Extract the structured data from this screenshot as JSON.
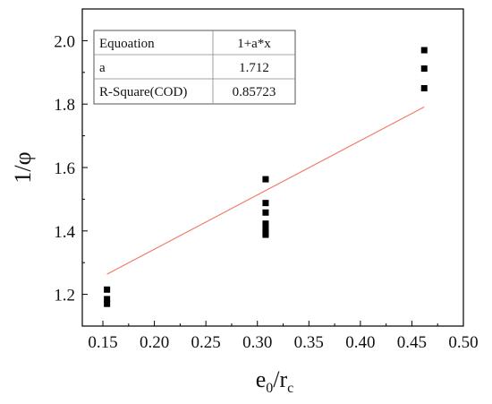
{
  "chart_data": {
    "type": "scatter",
    "xlabel_main": "e",
    "xlabel_sub0": "0",
    "xlabel_sep": "/r",
    "xlabel_subc": "c",
    "ylabel": "1/φ",
    "xlim": [
      0.13,
      0.5
    ],
    "ylim": [
      1.1,
      2.1
    ],
    "xticks": [
      "0.15",
      "0.20",
      "0.25",
      "0.30",
      "0.35",
      "0.40",
      "0.45",
      "0.50"
    ],
    "yticks": [
      "1.2",
      "1.4",
      "1.6",
      "1.8",
      "2.0"
    ],
    "grid": false,
    "points": [
      {
        "x": 0.154,
        "y": 1.215
      },
      {
        "x": 0.154,
        "y": 1.185
      },
      {
        "x": 0.154,
        "y": 1.17
      },
      {
        "x": 0.308,
        "y": 1.563
      },
      {
        "x": 0.308,
        "y": 1.488
      },
      {
        "x": 0.308,
        "y": 1.458
      },
      {
        "x": 0.308,
        "y": 1.423
      },
      {
        "x": 0.308,
        "y": 1.408
      },
      {
        "x": 0.308,
        "y": 1.395
      },
      {
        "x": 0.308,
        "y": 1.388
      },
      {
        "x": 0.462,
        "y": 1.97
      },
      {
        "x": 0.462,
        "y": 1.912
      },
      {
        "x": 0.462,
        "y": 1.85
      }
    ],
    "fit": {
      "equation": "1+a*x",
      "a": 1.712,
      "x_range": [
        0.154,
        0.462
      ],
      "color": "#f08070"
    },
    "marker_color": "#000000",
    "fit_table": [
      [
        "Equoation",
        "1+a*x"
      ],
      [
        "a",
        "1.712"
      ],
      [
        "R-Square(COD)",
        "0.85723"
      ]
    ]
  }
}
